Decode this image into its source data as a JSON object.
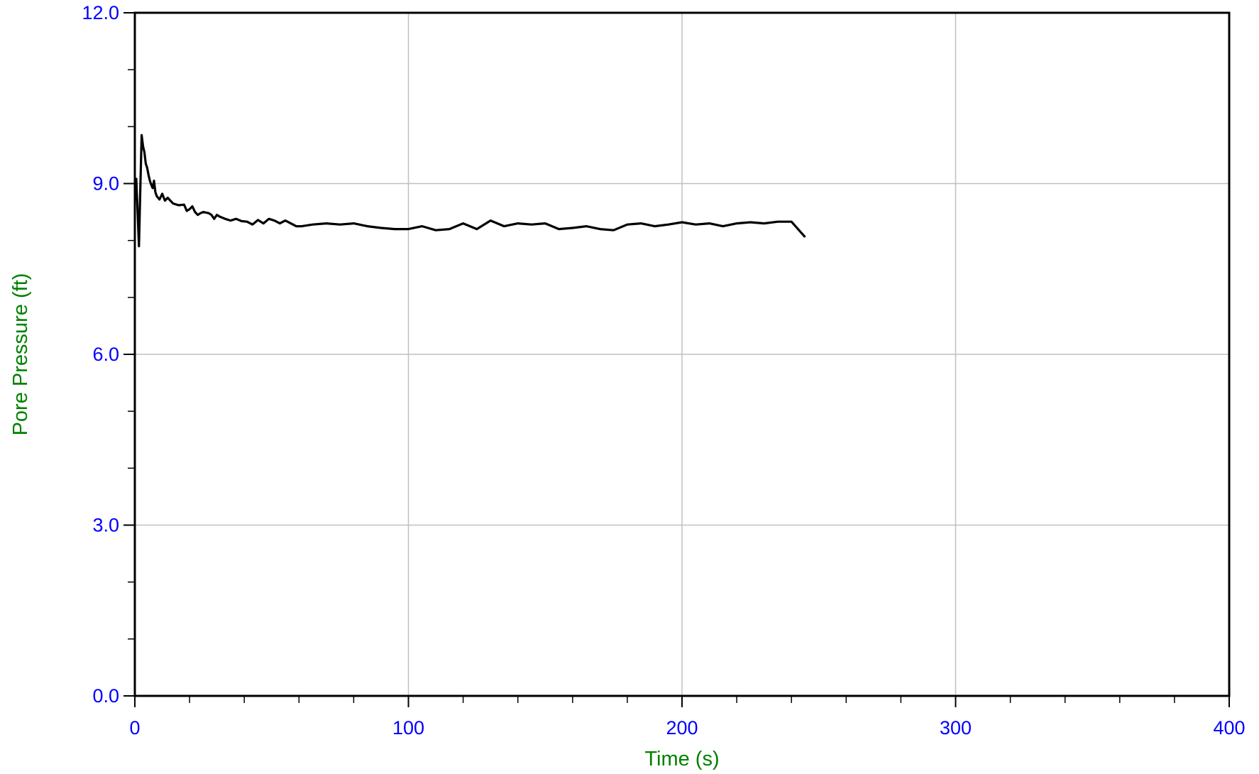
{
  "chart_data": {
    "type": "line",
    "xlabel": "Time (s)",
    "ylabel": "Pore Pressure (ft)",
    "xlim": [
      0,
      400
    ],
    "ylim": [
      0.0,
      12.0
    ],
    "x_ticks": [
      "0",
      "100",
      "200",
      "300",
      "400"
    ],
    "y_ticks": [
      "0.0",
      "3.0",
      "6.0",
      "9.0",
      "12.0"
    ],
    "grid": true,
    "colors": {
      "tick_labels": "#0000ff",
      "axis_titles": "#008000",
      "series": "#000000",
      "grid": "#c0c0c0",
      "frame": "#000000"
    },
    "series": [
      {
        "x": [
          0.5,
          1.0,
          1.5,
          2.0,
          2.5,
          3.0,
          3.5,
          4.0,
          4.5,
          5.0,
          5.5,
          6.0,
          6.5,
          7.0,
          7.5,
          8.0,
          9.0,
          10.0,
          11.0,
          12.0,
          13.0,
          14.0,
          16.0,
          18.0,
          19.0,
          20.0,
          21.0,
          22.0,
          23.0,
          24.0,
          25.0,
          27.0,
          28.0,
          29.0,
          30.0,
          31.0,
          33.0,
          35.0,
          37.0,
          39.0,
          41.0,
          43.0,
          45.0,
          47.0,
          49.0,
          51.0,
          53.0,
          55.0,
          57.0,
          59.0,
          61.0,
          65.0,
          70.0,
          75.0,
          80.0,
          85.0,
          90.0,
          95.0,
          100.0,
          105.0,
          110.0,
          115.0,
          120.0,
          125.0,
          130.0,
          135.0,
          140.0,
          145.0,
          150.0,
          155.0,
          160.0,
          165.0,
          170.0,
          175.0,
          180.0,
          185.0,
          190.0,
          195.0,
          200.0,
          205.0,
          210.0,
          215.0,
          220.0,
          225.0,
          230.0,
          235.0,
          240.0,
          245.0
        ],
        "y": [
          9.1,
          8.5,
          7.9,
          8.9,
          9.85,
          9.65,
          9.55,
          9.35,
          9.28,
          9.15,
          9.05,
          8.98,
          8.92,
          9.05,
          8.85,
          8.78,
          8.72,
          8.82,
          8.7,
          8.75,
          8.7,
          8.65,
          8.62,
          8.63,
          8.52,
          8.55,
          8.6,
          8.5,
          8.45,
          8.48,
          8.5,
          8.48,
          8.45,
          8.38,
          8.45,
          8.42,
          8.38,
          8.35,
          8.38,
          8.34,
          8.33,
          8.28,
          8.36,
          8.3,
          8.38,
          8.35,
          8.3,
          8.35,
          8.3,
          8.25,
          8.25,
          8.28,
          8.3,
          8.28,
          8.3,
          8.25,
          8.22,
          8.2,
          8.2,
          8.25,
          8.18,
          8.2,
          8.3,
          8.2,
          8.35,
          8.25,
          8.3,
          8.28,
          8.3,
          8.2,
          8.22,
          8.25,
          8.2,
          8.18,
          8.28,
          8.3,
          8.25,
          8.28,
          8.32,
          8.28,
          8.3,
          8.25,
          8.3,
          8.32,
          8.3,
          8.33,
          8.33,
          8.06
        ]
      }
    ]
  }
}
